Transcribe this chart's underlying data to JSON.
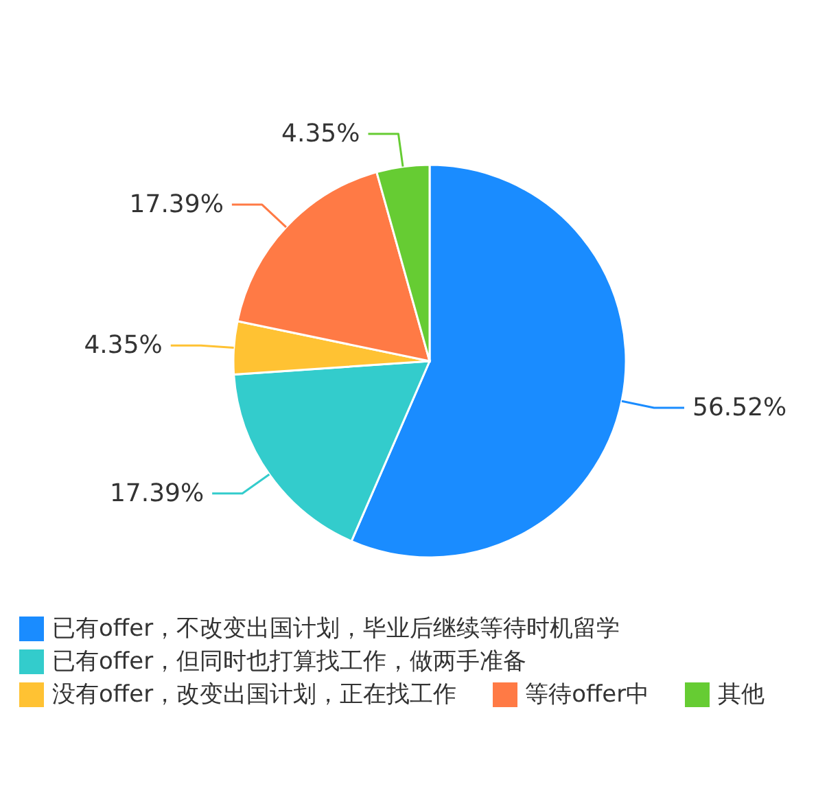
{
  "chart_data": {
    "type": "pie",
    "categories": [
      "已有offer，不改变出国计划，毕业后继续等待时机留学",
      "已有offer，但同时也打算找工作，做两手准备",
      "没有offer，改变出国计划，正在找工作",
      "等待offer中",
      "其他"
    ],
    "values": [
      56.52,
      17.39,
      4.35,
      17.39,
      4.35
    ],
    "value_labels": [
      "56.52%",
      "17.39%",
      "4.35%",
      "17.39%",
      "4.35%"
    ],
    "colors": [
      "#1a8cff",
      "#33cccc",
      "#ffc233",
      "#ff7a45",
      "#66cc33"
    ],
    "legend": "bottom"
  }
}
